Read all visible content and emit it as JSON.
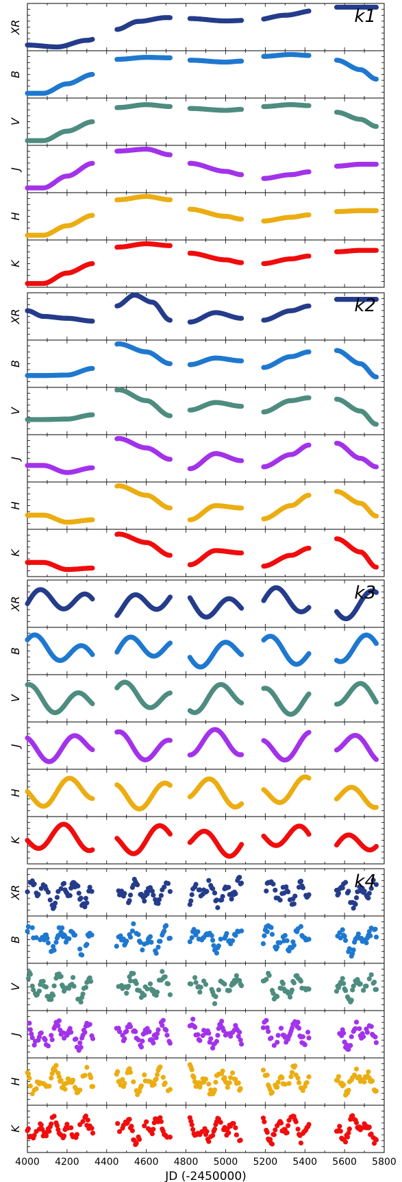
{
  "chart_data": {
    "type": "scatter",
    "xlabel": "JD (-2450000)",
    "xlim": [
      4000,
      5800
    ],
    "xticks": [
      "4000",
      "4200",
      "4400",
      "4600",
      "4800",
      "5000",
      "5200",
      "5400",
      "5600",
      "5800"
    ],
    "bands": [
      "XR",
      "B",
      "V",
      "J",
      "H",
      "K"
    ],
    "band_colors": {
      "XR": "#253C8A",
      "B": "#1F78CF",
      "V": "#4E8C80",
      "J": "#A233EA",
      "H": "#EBAD12",
      "K": "#F00D0D"
    },
    "segments": [
      [
        4000,
        4330
      ],
      [
        4450,
        4720
      ],
      [
        4820,
        5080
      ],
      [
        5190,
        5420
      ],
      [
        5560,
        5760
      ]
    ],
    "groups": [
      {
        "label": "k1",
        "description_kind": "trend",
        "panels": [
          {
            "band": "XR",
            "points": [
              [
                4000,
                0.12
              ],
              [
                4150,
                0.08
              ],
              [
                4300,
                0.22
              ],
              [
                4450,
                0.45
              ],
              [
                4560,
                0.62
              ],
              [
                4700,
                0.7
              ],
              [
                4820,
                0.68
              ],
              [
                5000,
                0.63
              ],
              [
                5150,
                0.65
              ],
              [
                5300,
                0.75
              ],
              [
                5450,
                0.85
              ],
              [
                5560,
                0.92
              ]
            ]
          },
          {
            "band": "B",
            "points": [
              [
                4080,
                0.1
              ],
              [
                4200,
                0.3
              ],
              [
                4330,
                0.5
              ],
              [
                4460,
                0.82
              ],
              [
                4600,
                0.86
              ],
              [
                4720,
                0.85
              ],
              [
                4820,
                0.8
              ],
              [
                5000,
                0.76
              ],
              [
                5080,
                0.78
              ],
              [
                5190,
                0.88
              ],
              [
                5330,
                0.92
              ],
              [
                5420,
                0.9
              ],
              [
                5560,
                0.8
              ],
              [
                5680,
                0.6
              ],
              [
                5760,
                0.4
              ]
            ]
          },
          {
            "band": "V",
            "points": [
              [
                4080,
                0.1
              ],
              [
                4200,
                0.3
              ],
              [
                4330,
                0.5
              ],
              [
                4460,
                0.8
              ],
              [
                4600,
                0.86
              ],
              [
                4720,
                0.82
              ],
              [
                4820,
                0.78
              ],
              [
                5000,
                0.74
              ],
              [
                5080,
                0.76
              ],
              [
                5190,
                0.82
              ],
              [
                5330,
                0.86
              ],
              [
                5420,
                0.84
              ],
              [
                5560,
                0.7
              ],
              [
                5680,
                0.55
              ],
              [
                5760,
                0.4
              ]
            ]
          },
          {
            "band": "J",
            "points": [
              [
                4080,
                0.1
              ],
              [
                4200,
                0.35
              ],
              [
                4330,
                0.62
              ],
              [
                4460,
                0.88
              ],
              [
                4600,
                0.92
              ],
              [
                4720,
                0.8
              ],
              [
                4820,
                0.62
              ],
              [
                5000,
                0.45
              ],
              [
                5080,
                0.38
              ],
              [
                5190,
                0.3
              ],
              [
                5330,
                0.38
              ],
              [
                5420,
                0.44
              ],
              [
                5560,
                0.56
              ],
              [
                5680,
                0.6
              ],
              [
                5760,
                0.6
              ]
            ]
          },
          {
            "band": "H",
            "points": [
              [
                4080,
                0.1
              ],
              [
                4200,
                0.3
              ],
              [
                4330,
                0.52
              ],
              [
                4460,
                0.85
              ],
              [
                4600,
                0.92
              ],
              [
                4720,
                0.85
              ],
              [
                4820,
                0.65
              ],
              [
                5000,
                0.5
              ],
              [
                5080,
                0.44
              ],
              [
                5190,
                0.4
              ],
              [
                5330,
                0.48
              ],
              [
                5420,
                0.53
              ],
              [
                5560,
                0.6
              ],
              [
                5680,
                0.62
              ],
              [
                5760,
                0.62
              ]
            ]
          },
          {
            "band": "K",
            "points": [
              [
                4080,
                0.08
              ],
              [
                4200,
                0.3
              ],
              [
                4330,
                0.5
              ],
              [
                4460,
                0.85
              ],
              [
                4600,
                0.92
              ],
              [
                4720,
                0.88
              ],
              [
                4820,
                0.72
              ],
              [
                5000,
                0.58
              ],
              [
                5080,
                0.52
              ],
              [
                5190,
                0.5
              ],
              [
                5330,
                0.6
              ],
              [
                5420,
                0.66
              ],
              [
                5560,
                0.75
              ],
              [
                5680,
                0.78
              ],
              [
                5760,
                0.78
              ]
            ]
          }
        ]
      },
      {
        "label": "k2",
        "description_kind": "medium",
        "panels": [
          {
            "band": "XR",
            "points": [
              [
                4000,
                0.62
              ],
              [
                4080,
                0.5
              ],
              [
                4200,
                0.46
              ],
              [
                4330,
                0.4
              ],
              [
                4450,
                0.72
              ],
              [
                4540,
                0.95
              ],
              [
                4630,
                0.8
              ],
              [
                4720,
                0.42
              ],
              [
                4820,
                0.38
              ],
              [
                4950,
                0.58
              ],
              [
                5080,
                0.46
              ],
              [
                5190,
                0.42
              ],
              [
                5330,
                0.62
              ],
              [
                5420,
                0.72
              ],
              [
                5520,
                0.86
              ]
            ]
          },
          {
            "band": "B",
            "points": [
              [
                4080,
                0.25
              ],
              [
                4200,
                0.26
              ],
              [
                4330,
                0.4
              ],
              [
                4460,
                0.92
              ],
              [
                4600,
                0.75
              ],
              [
                4720,
                0.5
              ],
              [
                4820,
                0.48
              ],
              [
                4950,
                0.62
              ],
              [
                5080,
                0.56
              ],
              [
                5190,
                0.42
              ],
              [
                5330,
                0.65
              ],
              [
                5420,
                0.75
              ],
              [
                5560,
                0.78
              ],
              [
                5680,
                0.5
              ],
              [
                5760,
                0.22
              ]
            ]
          },
          {
            "band": "V",
            "points": [
              [
                4080,
                0.32
              ],
              [
                4200,
                0.33
              ],
              [
                4330,
                0.42
              ],
              [
                4460,
                0.95
              ],
              [
                4600,
                0.72
              ],
              [
                4720,
                0.4
              ],
              [
                4820,
                0.52
              ],
              [
                4950,
                0.68
              ],
              [
                5080,
                0.6
              ],
              [
                5190,
                0.48
              ],
              [
                5330,
                0.72
              ],
              [
                5420,
                0.78
              ],
              [
                5560,
                0.75
              ],
              [
                5680,
                0.5
              ],
              [
                5760,
                0.22
              ]
            ]
          },
          {
            "band": "J",
            "points": [
              [
                4080,
                0.35
              ],
              [
                4200,
                0.2
              ],
              [
                4330,
                0.3
              ],
              [
                4460,
                0.92
              ],
              [
                4600,
                0.72
              ],
              [
                4720,
                0.48
              ],
              [
                4820,
                0.28
              ],
              [
                4950,
                0.6
              ],
              [
                5080,
                0.45
              ],
              [
                5190,
                0.32
              ],
              [
                5330,
                0.58
              ],
              [
                5420,
                0.78
              ],
              [
                5560,
                0.82
              ],
              [
                5680,
                0.5
              ],
              [
                5760,
                0.32
              ]
            ]
          },
          {
            "band": "H",
            "points": [
              [
                4080,
                0.3
              ],
              [
                4200,
                0.15
              ],
              [
                4330,
                0.2
              ],
              [
                4460,
                0.92
              ],
              [
                4600,
                0.72
              ],
              [
                4720,
                0.45
              ],
              [
                4820,
                0.2
              ],
              [
                4950,
                0.5
              ],
              [
                5080,
                0.45
              ],
              [
                5190,
                0.22
              ],
              [
                5330,
                0.5
              ],
              [
                5420,
                0.72
              ],
              [
                5560,
                0.8
              ],
              [
                5680,
                0.55
              ],
              [
                5760,
                0.28
              ]
            ]
          },
          {
            "band": "K",
            "points": [
              [
                4080,
                0.3
              ],
              [
                4200,
                0.15
              ],
              [
                4330,
                0.18
              ],
              [
                4460,
                0.9
              ],
              [
                4600,
                0.72
              ],
              [
                4720,
                0.45
              ],
              [
                4820,
                0.25
              ],
              [
                4950,
                0.55
              ],
              [
                5080,
                0.5
              ],
              [
                5190,
                0.22
              ],
              [
                5330,
                0.45
              ],
              [
                5420,
                0.6
              ],
              [
                5560,
                0.8
              ],
              [
                5680,
                0.52
              ],
              [
                5760,
                0.2
              ]
            ]
          }
        ]
      },
      {
        "label": "k3",
        "description_kind": "wiggly",
        "panels": [
          {
            "band": "XR",
            "points": []
          },
          {
            "band": "B",
            "points": []
          },
          {
            "band": "V",
            "points": []
          },
          {
            "band": "J",
            "points": []
          },
          {
            "band": "H",
            "points": []
          },
          {
            "band": "K",
            "points": []
          }
        ]
      },
      {
        "label": "k4",
        "description_kind": "noisy",
        "panels": [
          {
            "band": "XR",
            "points": []
          },
          {
            "band": "B",
            "points": []
          },
          {
            "band": "V",
            "points": []
          },
          {
            "band": "J",
            "points": []
          },
          {
            "band": "H",
            "points": []
          },
          {
            "band": "K",
            "points": []
          }
        ]
      }
    ]
  }
}
